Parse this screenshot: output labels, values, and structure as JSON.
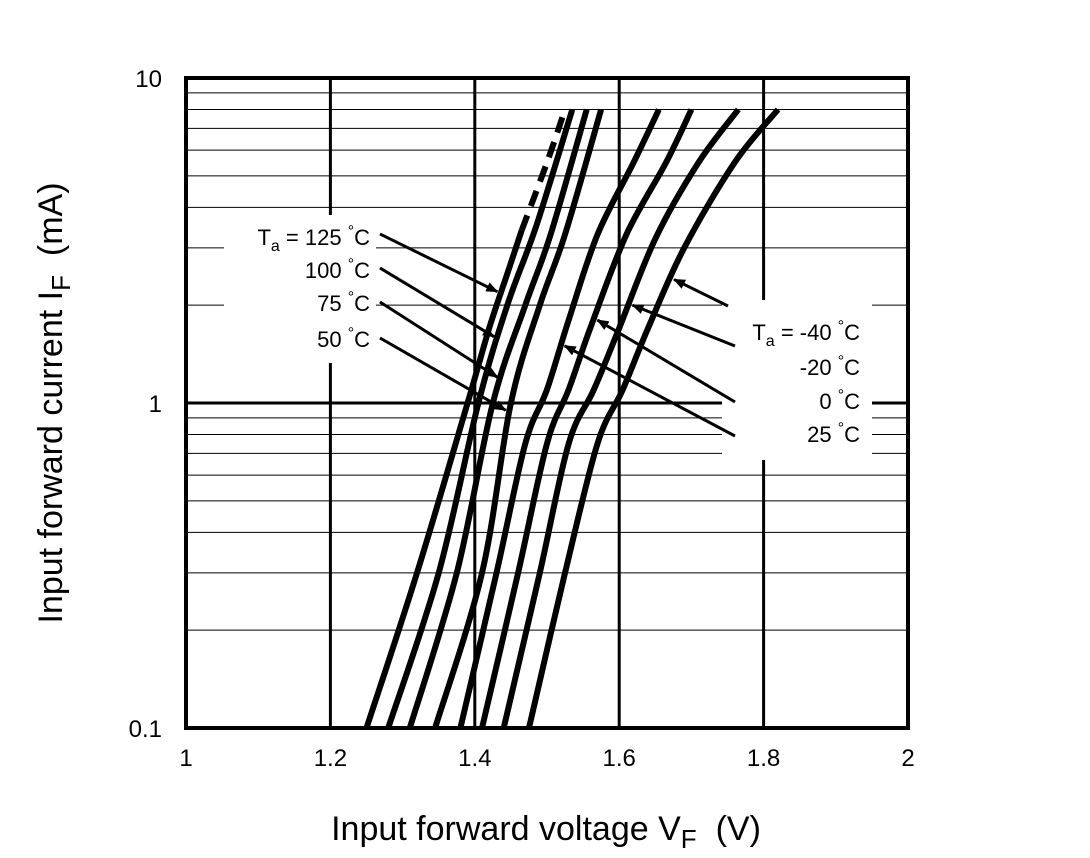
{
  "chart_data": {
    "type": "line",
    "title": "",
    "xlabel": "Input  forward  voltage  V",
    "xlabel_sub": "F",
    "xlabel_unit": "(V)",
    "ylabel": "Input  forward  current  I",
    "ylabel_sub": "F",
    "ylabel_unit": "(mA)",
    "x_scale": "linear",
    "y_scale": "log",
    "xlim": [
      1,
      2
    ],
    "ylim": [
      0.1,
      10
    ],
    "x_ticks": [
      "1",
      "1.2",
      "1.4",
      "1.6",
      "1.8",
      "2"
    ],
    "y_ticks": [
      "0.1",
      "1",
      "10"
    ],
    "grid": true,
    "series": [
      {
        "name": "125",
        "points": [
          [
            1.25,
            0.1
          ],
          [
            1.32,
            0.3
          ],
          [
            1.39,
            1.0
          ],
          [
            1.42,
            1.7
          ],
          [
            1.445,
            2.5
          ],
          [
            1.465,
            3.4
          ],
          [
            1.5,
            5.5
          ],
          [
            1.525,
            8.0
          ]
        ],
        "dashed_above": 3.4
      },
      {
        "name": "100",
        "points": [
          [
            1.28,
            0.1
          ],
          [
            1.35,
            0.3
          ],
          [
            1.405,
            1.0
          ],
          [
            1.445,
            2.0
          ],
          [
            1.485,
            3.5
          ],
          [
            1.535,
            8.0
          ]
        ]
      },
      {
        "name": "75",
        "points": [
          [
            1.31,
            0.1
          ],
          [
            1.375,
            0.3
          ],
          [
            1.425,
            1.0
          ],
          [
            1.47,
            2.0
          ],
          [
            1.505,
            3.3
          ],
          [
            1.555,
            8.0
          ]
        ]
      },
      {
        "name": "50",
        "points": [
          [
            1.345,
            0.1
          ],
          [
            1.41,
            0.3
          ],
          [
            1.45,
            1.0
          ],
          [
            1.49,
            2.0
          ],
          [
            1.525,
            3.3
          ],
          [
            1.575,
            8.0
          ]
        ]
      },
      {
        "name": "25",
        "points": [
          [
            1.38,
            0.1
          ],
          [
            1.43,
            0.3
          ],
          [
            1.47,
            0.75
          ],
          [
            1.5,
            1.1
          ],
          [
            1.53,
            1.8
          ],
          [
            1.57,
            3.3
          ],
          [
            1.62,
            5.5
          ],
          [
            1.655,
            8.0
          ]
        ]
      },
      {
        "name": "0",
        "points": [
          [
            1.41,
            0.1
          ],
          [
            1.46,
            0.3
          ],
          [
            1.5,
            0.75
          ],
          [
            1.53,
            1.1
          ],
          [
            1.56,
            1.7
          ],
          [
            1.61,
            3.3
          ],
          [
            1.665,
            5.5
          ],
          [
            1.7,
            8.0
          ]
        ]
      },
      {
        "name": "-20",
        "points": [
          [
            1.44,
            0.1
          ],
          [
            1.49,
            0.3
          ],
          [
            1.53,
            0.75
          ],
          [
            1.565,
            1.1
          ],
          [
            1.6,
            1.7
          ],
          [
            1.65,
            3.2
          ],
          [
            1.71,
            5.5
          ],
          [
            1.765,
            8.0
          ]
        ]
      },
      {
        "name": "-40",
        "points": [
          [
            1.475,
            0.1
          ],
          [
            1.525,
            0.3
          ],
          [
            1.57,
            0.75
          ],
          [
            1.605,
            1.1
          ],
          [
            1.64,
            1.7
          ],
          [
            1.69,
            3.0
          ],
          [
            1.76,
            5.5
          ],
          [
            1.82,
            8.0
          ]
        ]
      }
    ],
    "annotations": {
      "left": {
        "prefix": "T",
        "prefix_sub": "a",
        "eq": " = ",
        "labels": [
          "125 °C",
          "100 °C",
          "75 °C",
          "50 °C"
        ]
      },
      "right": {
        "prefix": "T",
        "prefix_sub": "a",
        "eq": " = ",
        "labels": [
          "-40 °C",
          "-20 °C",
          "0 °C",
          "25 °C"
        ]
      }
    }
  }
}
